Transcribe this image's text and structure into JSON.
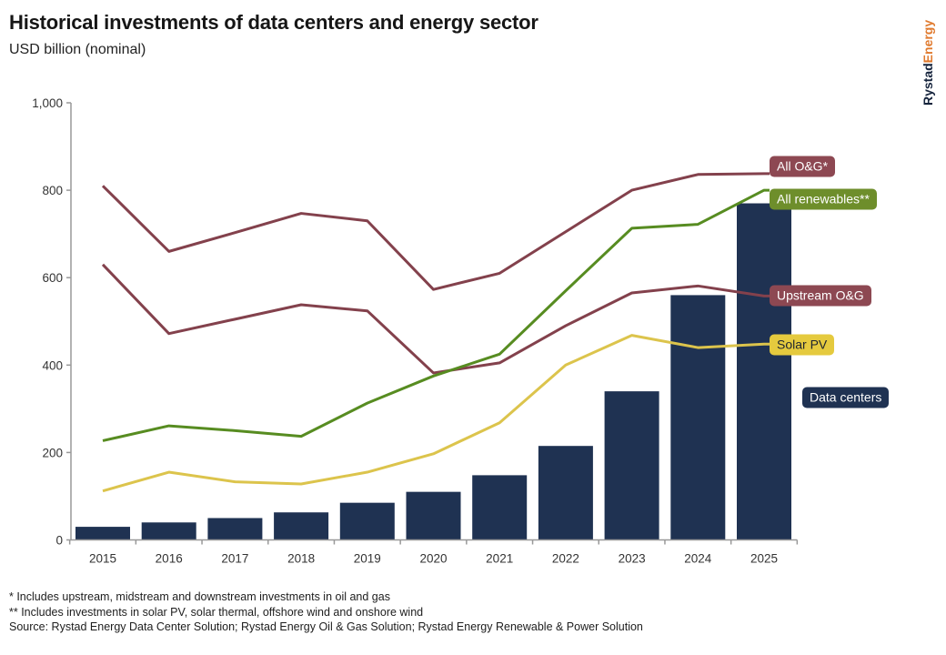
{
  "header": {
    "title": "Historical investments of data centers and energy sector",
    "subtitle": "USD billion (nominal)"
  },
  "logo": {
    "part1": "Rystad",
    "part2": "Energy"
  },
  "chart_data": {
    "type": "bar+line",
    "x_labels": [
      "2015",
      "2016",
      "2017",
      "2018",
      "2019",
      "2020",
      "2021",
      "2022",
      "2023",
      "2024",
      "2025"
    ],
    "ylim": [
      0,
      1000
    ],
    "yticks": [
      0,
      200,
      400,
      600,
      800,
      1000
    ],
    "ytick_labels": [
      "0",
      "200",
      "400",
      "600",
      "800",
      "1,000"
    ],
    "grid": false,
    "legend_position": "right-end-labels",
    "bar_series": {
      "name": "Data centers",
      "color": "#1f3252",
      "label_bg": "#1f3252",
      "label_color": "#ffffff",
      "values": [
        30,
        40,
        50,
        63,
        85,
        110,
        148,
        215,
        340,
        560,
        770
      ]
    },
    "line_series": [
      {
        "name": "All O&G*",
        "color": "#83414c",
        "label_bg": "#8d4852",
        "label_color": "#ffffff",
        "values": [
          810,
          660,
          703,
          747,
          730,
          573,
          610,
          705,
          800,
          836,
          838
        ]
      },
      {
        "name": "All renewables**",
        "color": "#578c21",
        "label_bg": "#6e8e2b",
        "label_color": "#ffffff",
        "values": [
          227,
          261,
          250,
          237,
          313,
          375,
          425,
          570,
          713,
          722,
          800
        ]
      },
      {
        "name": "Upstream O&G",
        "color": "#83414c",
        "label_bg": "#8d4852",
        "label_color": "#ffffff",
        "values": [
          630,
          472,
          505,
          538,
          524,
          382,
          405,
          490,
          565,
          581,
          558
        ]
      },
      {
        "name": "Solar PV",
        "color": "#dcc44c",
        "label_bg": "#e5ca3e",
        "label_color": "#1d2430",
        "values": [
          112,
          155,
          133,
          128,
          155,
          197,
          268,
          400,
          468,
          440,
          448
        ]
      }
    ],
    "axis_color": "#999999",
    "tick_text_color": "#333333"
  },
  "footnotes": [
    "* Includes upstream, midstream and downstream investments in oil and gas",
    "** Includes investments in solar PV, solar thermal, offshore wind and onshore wind",
    "Source: Rystad Energy Data Center Solution; Rystad Energy Oil & Gas Solution; Rystad Energy Renewable & Power Solution"
  ]
}
